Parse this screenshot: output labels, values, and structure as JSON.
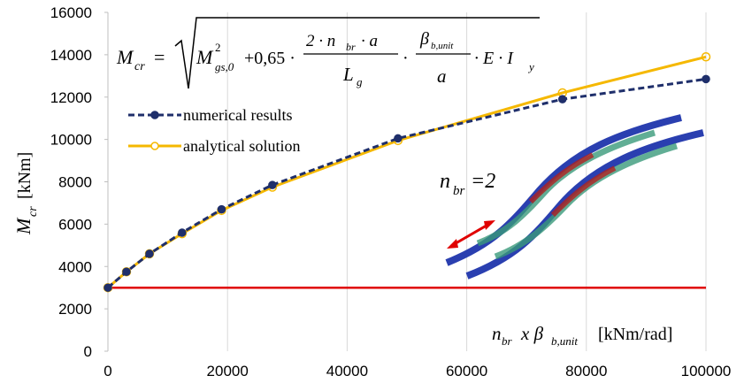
{
  "chart_data": {
    "type": "line",
    "x": [
      0,
      3100,
      6950,
      12400,
      19000,
      27500,
      48500,
      76000,
      100000
    ],
    "series": [
      {
        "name": "numerical results",
        "color": "#1f2f6b",
        "dashed": true,
        "marker": "filled",
        "values": [
          3000,
          3750,
          4600,
          5600,
          6700,
          7850,
          10050,
          11900,
          12850
        ]
      },
      {
        "name": "analytical solution",
        "color": "#f5b800",
        "dashed": false,
        "marker": "open",
        "values": [
          3000,
          3750,
          4600,
          5550,
          6650,
          7750,
          9950,
          12200,
          13900
        ]
      }
    ],
    "reference_line": {
      "value": 3000,
      "color": "#e00000"
    },
    "xlim": [
      0,
      100000
    ],
    "xticks": [
      0,
      20000,
      40000,
      60000,
      80000,
      100000
    ],
    "ylim": [
      0,
      16000
    ],
    "yticks": [
      0,
      2000,
      4000,
      6000,
      8000,
      10000,
      12000,
      14000,
      16000
    ],
    "grid": "x",
    "legend": "upper left",
    "y_label": {
      "symbol": "M",
      "sub": "cr",
      "unit": "[kNm]"
    },
    "x_label": {
      "symbol": "n",
      "sub": "br",
      "middle": "x β",
      "sub2": "b,unit",
      "unit": "[kNm/rad]"
    },
    "annotation": {
      "symbol": "n",
      "sub": "br",
      "rest": "=2"
    },
    "formula": [
      "M",
      "cr",
      "=",
      "M",
      "2",
      "gs,0",
      "+0,65 ·",
      "2 · n",
      "br",
      "· a",
      "L",
      "g",
      "·",
      "β",
      "b,unit",
      "a",
      "· E · I",
      "y"
    ]
  }
}
